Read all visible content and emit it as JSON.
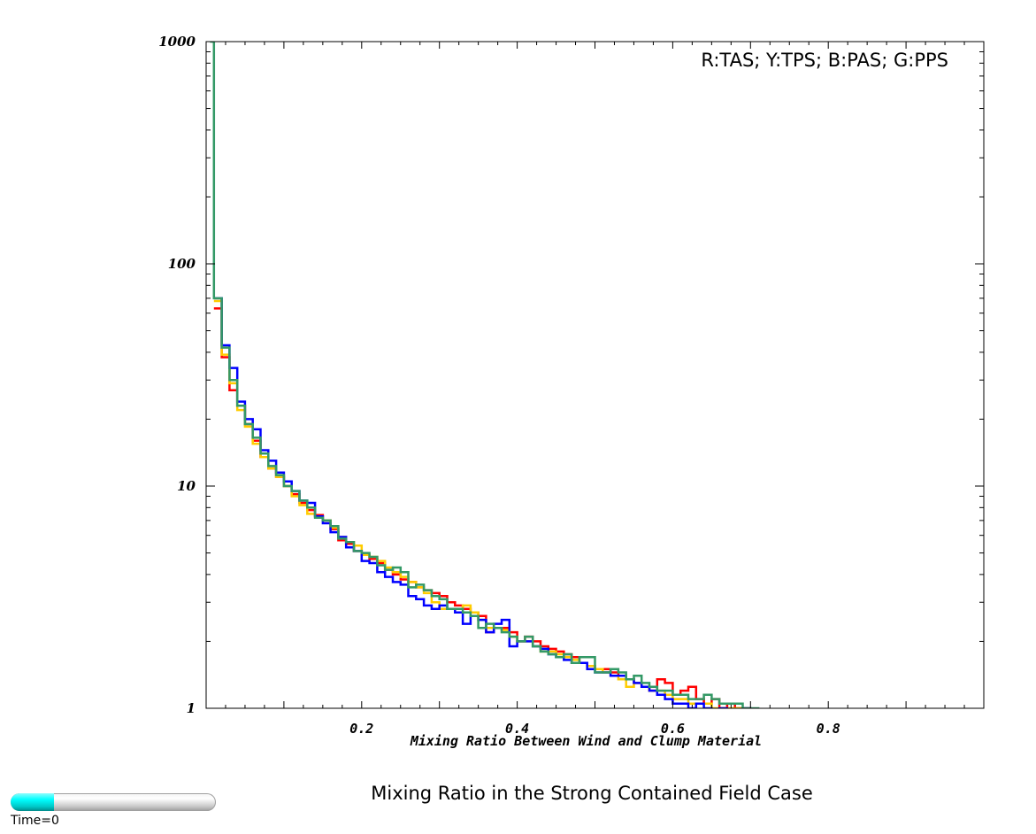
{
  "chart_data": {
    "type": "line",
    "title": "Mixing Ratio in the Strong Contained Field Case",
    "xlabel": "Mixing Ratio Between Wind and Clump Material",
    "ylabel": "",
    "legend_text": "R:TAS; Y:TPS; B:PAS; G:PPS",
    "legend_position": "top-right",
    "y_scale": "log",
    "xlim": [
      0,
      1
    ],
    "ylim": [
      1,
      1000
    ],
    "x_ticks": [
      "0.2",
      "0.4",
      "0.6",
      "0.8"
    ],
    "y_ticks": [
      "1",
      "10",
      "100",
      "1000"
    ],
    "grid": false,
    "series": [
      {
        "color": "#ff0000",
        "x": [
          0.01,
          0.02,
          0.03,
          0.04,
          0.05,
          0.06,
          0.07,
          0.08,
          0.09,
          0.1,
          0.11,
          0.12,
          0.13,
          0.14,
          0.15,
          0.16,
          0.17,
          0.18,
          0.19,
          0.2,
          0.21,
          0.22,
          0.23,
          0.24,
          0.25,
          0.26,
          0.27,
          0.28,
          0.29,
          0.3,
          0.31,
          0.32,
          0.33,
          0.34,
          0.35,
          0.36,
          0.37,
          0.38,
          0.39,
          0.4,
          0.41,
          0.42,
          0.43,
          0.44,
          0.45,
          0.46,
          0.47,
          0.48,
          0.49,
          0.5,
          0.51,
          0.52,
          0.53,
          0.54,
          0.55,
          0.56,
          0.57,
          0.58,
          0.59,
          0.6,
          0.61,
          0.62,
          0.63,
          0.64,
          0.65,
          0.66,
          0.67,
          0.68,
          0.69,
          0.7,
          0.71
        ],
        "y": [
          63,
          38,
          27,
          23,
          19,
          16,
          13.5,
          12,
          11,
          10,
          9.2,
          8.4,
          7.8,
          7.4,
          7.0,
          6.4,
          5.7,
          5.5,
          5.1,
          4.9,
          4.7,
          4.5,
          4.2,
          4.0,
          3.8,
          3.7,
          3.5,
          3.4,
          3.3,
          3.2,
          3.0,
          2.9,
          2.8,
          2.7,
          2.6,
          2.2,
          2.3,
          2.3,
          2.2,
          2.0,
          2.1,
          2.0,
          1.9,
          1.85,
          1.8,
          1.75,
          1.7,
          1.6,
          1.55,
          1.5,
          1.5,
          1.45,
          1.4,
          1.35,
          1.3,
          1.25,
          1.2,
          1.35,
          1.3,
          1.15,
          1.2,
          1.25,
          1.1,
          1.05,
          1.1,
          1.0,
          1.05,
          1.0,
          1.0,
          0.98,
          0.95
        ]
      },
      {
        "color": "#ffcc00",
        "x": [
          0.01,
          0.02,
          0.03,
          0.04,
          0.05,
          0.06,
          0.07,
          0.08,
          0.09,
          0.1,
          0.11,
          0.12,
          0.13,
          0.14,
          0.15,
          0.16,
          0.17,
          0.18,
          0.19,
          0.2,
          0.21,
          0.22,
          0.23,
          0.24,
          0.25,
          0.26,
          0.27,
          0.28,
          0.29,
          0.3,
          0.31,
          0.32,
          0.33,
          0.34,
          0.35,
          0.36,
          0.37,
          0.38,
          0.39,
          0.4,
          0.41,
          0.42,
          0.43,
          0.44,
          0.45,
          0.46,
          0.47,
          0.48,
          0.49,
          0.5,
          0.51,
          0.52,
          0.53,
          0.54,
          0.55,
          0.56,
          0.57,
          0.58,
          0.59,
          0.6,
          0.61,
          0.62,
          0.63,
          0.64,
          0.65,
          0.66,
          0.67,
          0.68,
          0.69,
          0.7,
          0.71,
          0.72
        ],
        "y": [
          68,
          39,
          29,
          22,
          18.5,
          15.5,
          13.5,
          12,
          11,
          10,
          9.0,
          8.2,
          7.5,
          7.3,
          7.0,
          6.5,
          5.9,
          5.6,
          5.4,
          4.9,
          4.8,
          4.6,
          4.3,
          4.1,
          3.9,
          3.7,
          3.5,
          3.3,
          3.0,
          2.8,
          2.8,
          2.8,
          2.9,
          2.7,
          2.5,
          2.3,
          2.3,
          2.25,
          2.1,
          2.0,
          2.0,
          1.9,
          1.8,
          1.8,
          1.75,
          1.7,
          1.65,
          1.6,
          1.55,
          1.5,
          1.45,
          1.4,
          1.35,
          1.25,
          1.3,
          1.25,
          1.2,
          1.2,
          1.15,
          1.1,
          1.1,
          1.05,
          1.05,
          1.05,
          1.0,
          1.0,
          1.0,
          1.0,
          0.98,
          0.98,
          0.97,
          0.95
        ]
      },
      {
        "color": "#0000ff",
        "x": [
          0.01,
          0.02,
          0.03,
          0.04,
          0.05,
          0.06,
          0.07,
          0.08,
          0.09,
          0.1,
          0.11,
          0.12,
          0.13,
          0.14,
          0.15,
          0.16,
          0.17,
          0.18,
          0.19,
          0.2,
          0.21,
          0.22,
          0.23,
          0.24,
          0.25,
          0.26,
          0.27,
          0.28,
          0.29,
          0.3,
          0.31,
          0.32,
          0.33,
          0.34,
          0.35,
          0.36,
          0.37,
          0.38,
          0.39,
          0.4,
          0.41,
          0.42,
          0.43,
          0.44,
          0.45,
          0.46,
          0.47,
          0.48,
          0.49,
          0.5,
          0.51,
          0.52,
          0.53,
          0.54,
          0.55,
          0.56,
          0.57,
          0.58,
          0.59,
          0.6,
          0.61,
          0.62,
          0.63,
          0.64,
          0.65,
          0.66,
          0.67,
          0.68,
          0.69,
          0.7,
          0.71
        ],
        "y": [
          70,
          43,
          34,
          24,
          20,
          18,
          14.5,
          13,
          11.5,
          10.5,
          9.5,
          8.6,
          8.4,
          7.3,
          6.8,
          6.2,
          5.9,
          5.3,
          5.1,
          4.6,
          4.5,
          4.1,
          3.9,
          3.7,
          3.6,
          3.2,
          3.1,
          2.9,
          2.8,
          2.9,
          2.8,
          2.7,
          2.4,
          2.6,
          2.5,
          2.2,
          2.4,
          2.5,
          1.9,
          2.0,
          2.0,
          1.9,
          1.85,
          1.75,
          1.7,
          1.65,
          1.6,
          1.6,
          1.5,
          1.45,
          1.45,
          1.4,
          1.4,
          1.35,
          1.3,
          1.25,
          1.2,
          1.15,
          1.1,
          1.05,
          1.05,
          1.0,
          1.05,
          1.0,
          0.98,
          1.0,
          0.97,
          0.96,
          1.0,
          0.97,
          0.95
        ]
      },
      {
        "color": "#339966",
        "x": [
          0.005,
          0.01,
          0.02,
          0.03,
          0.04,
          0.05,
          0.06,
          0.07,
          0.08,
          0.09,
          0.1,
          0.11,
          0.12,
          0.13,
          0.14,
          0.15,
          0.16,
          0.17,
          0.18,
          0.19,
          0.2,
          0.21,
          0.22,
          0.23,
          0.24,
          0.25,
          0.26,
          0.27,
          0.28,
          0.29,
          0.3,
          0.31,
          0.32,
          0.33,
          0.34,
          0.35,
          0.36,
          0.37,
          0.38,
          0.39,
          0.4,
          0.41,
          0.42,
          0.43,
          0.44,
          0.45,
          0.46,
          0.47,
          0.48,
          0.49,
          0.5,
          0.51,
          0.52,
          0.53,
          0.54,
          0.55,
          0.56,
          0.57,
          0.58,
          0.59,
          0.6,
          0.61,
          0.62,
          0.63,
          0.64,
          0.65,
          0.66,
          0.67,
          0.68,
          0.69,
          0.7,
          0.71
        ],
        "y": [
          1000,
          70,
          42,
          30,
          23,
          19,
          16.5,
          14,
          12.3,
          11.2,
          10,
          9.5,
          8.6,
          8,
          7.2,
          7.0,
          6.6,
          5.8,
          5.6,
          5.1,
          5.0,
          4.8,
          4.4,
          4.2,
          4.3,
          4.1,
          3.5,
          3.6,
          3.4,
          3.2,
          3.1,
          2.8,
          2.8,
          2.7,
          2.6,
          2.3,
          2.4,
          2.3,
          2.2,
          2.1,
          2.0,
          2.1,
          1.9,
          1.8,
          1.75,
          1.7,
          1.75,
          1.6,
          1.7,
          1.7,
          1.45,
          1.45,
          1.5,
          1.45,
          1.35,
          1.4,
          1.3,
          1.25,
          1.2,
          1.2,
          1.15,
          1.15,
          1.1,
          1.1,
          1.15,
          1.1,
          1.05,
          1.05,
          1.05,
          1.0,
          1.0,
          0.97
        ]
      }
    ]
  },
  "time_slider": {
    "label": "Time=0",
    "progress": 0.21,
    "fill_color": "#00ffff"
  }
}
